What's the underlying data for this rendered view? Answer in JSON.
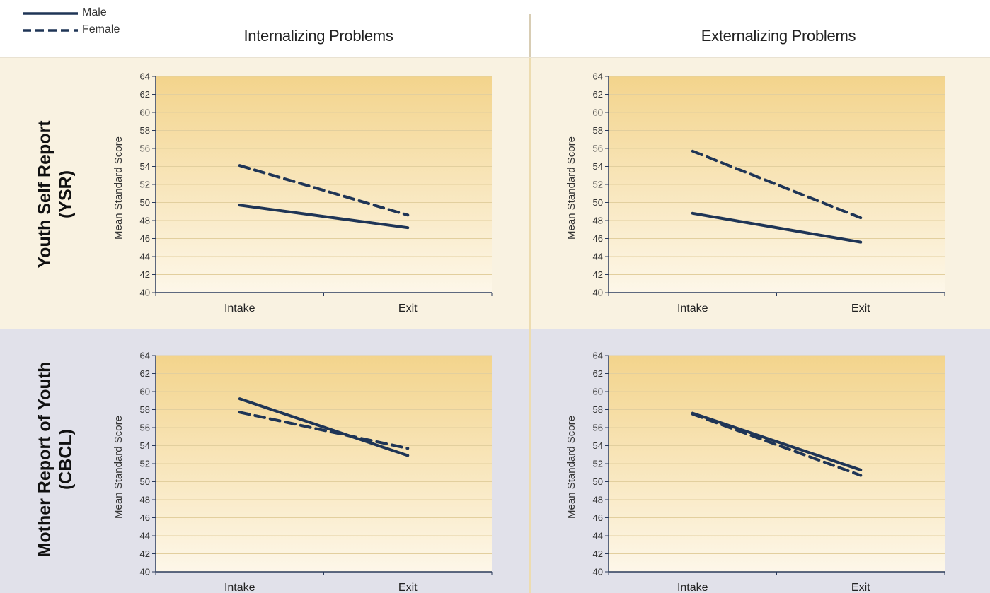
{
  "legend": [
    {
      "name": "Male",
      "style": "solid"
    },
    {
      "name": "Female",
      "style": "dashed"
    }
  ],
  "columns": {
    "internalizing": "Internalizing Problems",
    "externalizing": "Externalizing Problems"
  },
  "rows": {
    "ysr": {
      "line1": "Youth Self Report",
      "line2": "(YSR)"
    },
    "cbcl": {
      "line1": "Mother Report of Youth",
      "line2": "(CBCL)"
    }
  },
  "colors": {
    "line": "#1f3556",
    "plot_top": "#f3d48c",
    "plot_bottom": "#fdf7e9",
    "band_ysr": "#f9f2e1",
    "band_cbcl": "#e1e1ea"
  },
  "chart_data": [
    {
      "type": "line",
      "row": "Youth Self Report (YSR)",
      "column": "Internalizing Problems",
      "categories": [
        "Intake",
        "Exit"
      ],
      "ylabel": "Mean Standard Score",
      "ylim": [
        40,
        64
      ],
      "yticks": [
        40,
        42,
        44,
        46,
        48,
        50,
        52,
        54,
        56,
        58,
        60,
        62,
        64
      ],
      "grid": true,
      "series": [
        {
          "name": "Male",
          "style": "solid",
          "values": [
            49.7,
            47.2
          ]
        },
        {
          "name": "Female",
          "style": "dashed",
          "values": [
            54.1,
            48.6
          ]
        }
      ]
    },
    {
      "type": "line",
      "row": "Youth Self Report (YSR)",
      "column": "Externalizing Problems",
      "categories": [
        "Intake",
        "Exit"
      ],
      "ylabel": "Mean Standard Score",
      "ylim": [
        40,
        64
      ],
      "yticks": [
        40,
        42,
        44,
        46,
        48,
        50,
        52,
        54,
        56,
        58,
        60,
        62,
        64
      ],
      "grid": true,
      "series": [
        {
          "name": "Male",
          "style": "solid",
          "values": [
            48.8,
            45.6
          ]
        },
        {
          "name": "Female",
          "style": "dashed",
          "values": [
            55.7,
            48.3
          ]
        }
      ]
    },
    {
      "type": "line",
      "row": "Mother Report of Youth (CBCL)",
      "column": "Internalizing Problems",
      "categories": [
        "Intake",
        "Exit"
      ],
      "ylabel": "Mean Standard Score",
      "ylim": [
        40,
        64
      ],
      "yticks": [
        40,
        42,
        44,
        46,
        48,
        50,
        52,
        54,
        56,
        58,
        60,
        62,
        64
      ],
      "grid": true,
      "series": [
        {
          "name": "Male",
          "style": "solid",
          "values": [
            59.2,
            52.9
          ]
        },
        {
          "name": "Female",
          "style": "dashed",
          "values": [
            57.7,
            53.7
          ]
        }
      ]
    },
    {
      "type": "line",
      "row": "Mother Report of Youth (CBCL)",
      "column": "Externalizing Problems",
      "categories": [
        "Intake",
        "Exit"
      ],
      "ylabel": "Mean Standard Score",
      "ylim": [
        40,
        64
      ],
      "yticks": [
        40,
        42,
        44,
        46,
        48,
        50,
        52,
        54,
        56,
        58,
        60,
        62,
        64
      ],
      "grid": true,
      "series": [
        {
          "name": "Male",
          "style": "solid",
          "values": [
            57.6,
            51.3
          ]
        },
        {
          "name": "Female",
          "style": "dashed",
          "values": [
            57.5,
            50.7
          ]
        }
      ]
    }
  ]
}
